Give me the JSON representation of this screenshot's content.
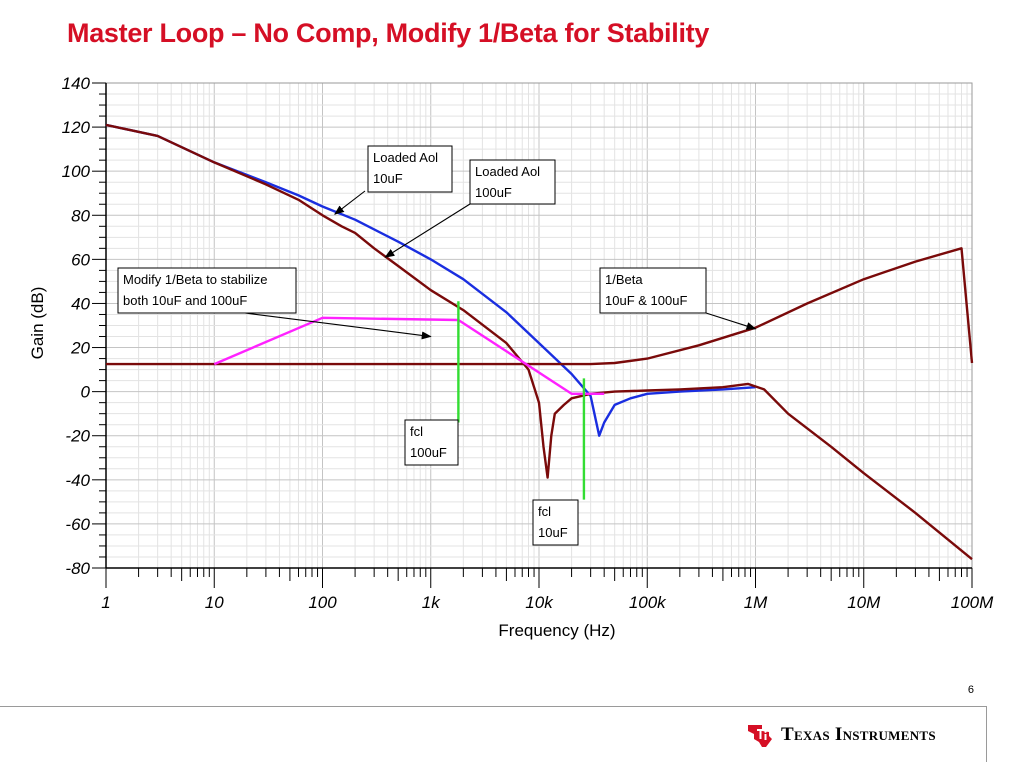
{
  "slide": {
    "title": "Master Loop – No Comp, Modify 1/Beta for Stability",
    "page_number": "6"
  },
  "brand": {
    "name": "Texas Instruments",
    "logo_icon": "ti-state-logo-icon",
    "color": "#d50f25"
  },
  "colors": {
    "aol_10uF": "#1a2ee0",
    "aol_100uF": "#7a0a0a",
    "beta_modified": "#ff22ff",
    "fcl_markers": "#33dd33"
  },
  "chart_data": {
    "type": "line",
    "title": "",
    "xlabel": "Frequency (Hz)",
    "ylabel": "Gain (dB)",
    "x_scale": "log",
    "xlim": [
      1,
      100000000
    ],
    "ylim": [
      -80,
      140
    ],
    "x_ticks": [
      1,
      10,
      100,
      1000,
      10000,
      100000,
      1000000,
      10000000,
      100000000
    ],
    "x_tick_labels": [
      "1",
      "10",
      "100",
      "1k",
      "10k",
      "100k",
      "1M",
      "10M",
      "100M"
    ],
    "y_ticks": [
      -80,
      -60,
      -40,
      -20,
      0,
      20,
      40,
      60,
      80,
      100,
      120,
      140
    ],
    "y_tick_labels": [
      "-80",
      "-60",
      "-40",
      "-20",
      "0",
      "20",
      "40",
      "60",
      "80",
      "100",
      "120",
      "140"
    ],
    "grid": true,
    "series": [
      {
        "key": "aol_10uF",
        "color": "#1a2ee0",
        "points": [
          [
            1,
            121
          ],
          [
            3,
            116
          ],
          [
            10,
            104
          ],
          [
            30,
            95
          ],
          [
            60,
            89
          ],
          [
            100,
            84
          ],
          [
            200,
            78
          ],
          [
            500,
            68
          ],
          [
            1000,
            60
          ],
          [
            2000,
            51
          ],
          [
            5000,
            36
          ],
          [
            10000,
            22
          ],
          [
            20000,
            8
          ],
          [
            30000,
            -2
          ],
          [
            36000,
            -20
          ],
          [
            40000,
            -14
          ],
          [
            50000,
            -6
          ],
          [
            70000,
            -3
          ],
          [
            100000,
            -1
          ],
          [
            200000,
            0
          ],
          [
            500000,
            1
          ],
          [
            1000000,
            2
          ]
        ]
      },
      {
        "key": "aol_100uF",
        "color": "#7a0a0a",
        "points": [
          [
            1,
            121
          ],
          [
            3,
            116
          ],
          [
            10,
            104
          ],
          [
            30,
            94
          ],
          [
            60,
            87
          ],
          [
            100,
            80
          ],
          [
            150,
            75
          ],
          [
            200,
            72
          ],
          [
            300,
            65
          ],
          [
            500,
            57
          ],
          [
            1000,
            46
          ],
          [
            2000,
            37
          ],
          [
            5000,
            22
          ],
          [
            8000,
            10
          ],
          [
            10000,
            -5
          ],
          [
            11000,
            -25
          ],
          [
            12000,
            -39
          ],
          [
            13000,
            -20
          ],
          [
            14000,
            -10
          ],
          [
            17000,
            -6
          ],
          [
            20000,
            -3
          ],
          [
            30000,
            -1
          ],
          [
            50000,
            0
          ],
          [
            100000,
            0.5
          ],
          [
            200000,
            1
          ],
          [
            500000,
            2
          ],
          [
            850000,
            3.5
          ],
          [
            1200000,
            1
          ],
          [
            2000000,
            -10
          ],
          [
            5000000,
            -25
          ],
          [
            10000000,
            -37
          ],
          [
            30000000,
            -55
          ],
          [
            100000000,
            -76
          ]
        ]
      },
      {
        "key": "beta_original",
        "color": "#7a0a0a",
        "points": [
          [
            1,
            12.5
          ],
          [
            10,
            12.5
          ],
          [
            100,
            12.5
          ],
          [
            1000,
            12.5
          ],
          [
            10000,
            12.5
          ],
          [
            30000,
            12.5
          ],
          [
            50000,
            13
          ],
          [
            100000,
            15
          ],
          [
            300000,
            21
          ],
          [
            1000000,
            29
          ],
          [
            3000000,
            40
          ],
          [
            10000000,
            51
          ],
          [
            30000000,
            59
          ],
          [
            80000000,
            65
          ],
          [
            100000000,
            13
          ]
        ]
      },
      {
        "key": "beta_modified",
        "color": "#ff22ff",
        "points": [
          [
            10,
            12.5
          ],
          [
            100,
            33.5
          ],
          [
            1800,
            32.5
          ],
          [
            20000,
            -1
          ],
          [
            40000,
            -1
          ]
        ]
      }
    ],
    "markers": [
      {
        "key": "fcl_100uF",
        "x": 1800,
        "y_range": [
          -14,
          41
        ],
        "color": "#33dd33"
      },
      {
        "key": "fcl_10uF",
        "x": 26000,
        "y_range": [
          -49,
          6
        ],
        "color": "#33dd33"
      }
    ],
    "annotations": [
      {
        "lines": [
          "Loaded Aol",
          "10uF"
        ],
        "arrow_to": [
          130,
          80.5
        ]
      },
      {
        "lines": [
          "Loaded Aol",
          "100uF"
        ],
        "arrow_to": [
          380,
          61
        ]
      },
      {
        "lines": [
          "Modify 1/Beta to stabilize",
          "both 10uF and 100uF"
        ],
        "arrow_to": [
          1000,
          25
        ]
      },
      {
        "lines": [
          "1/Beta",
          "10uF & 100uF"
        ],
        "arrow_to": [
          1000000,
          28.5
        ]
      },
      {
        "lines": [
          "fcl",
          "100uF"
        ],
        "arrow_to": null
      },
      {
        "lines": [
          "fcl",
          "10uF"
        ],
        "arrow_to": null
      }
    ]
  }
}
